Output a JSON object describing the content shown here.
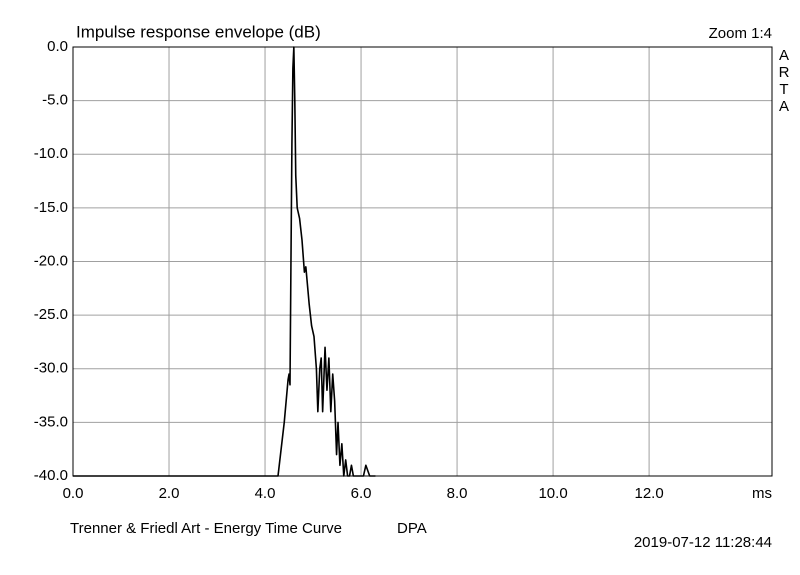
{
  "chart_data": {
    "type": "line",
    "title": "Impulse response envelope (dB)",
    "zoom": "Zoom 1:4",
    "brand": [
      "A",
      "R",
      "T",
      "A"
    ],
    "x_label": "ms",
    "footer": "Trenner & Friedl Art - Energy Time Curve",
    "device": "DPA",
    "timestamp": "2019-07-12  11:28:44",
    "xlim": [
      0,
      14.56
    ],
    "ylim": [
      -40,
      0
    ],
    "xticks": [
      {
        "value": 0,
        "label": "0.0"
      },
      {
        "value": 2,
        "label": "2.0"
      },
      {
        "value": 4,
        "label": "4.0"
      },
      {
        "value": 6,
        "label": "6.0"
      },
      {
        "value": 8,
        "label": "8.0"
      },
      {
        "value": 10,
        "label": "10.0"
      },
      {
        "value": 12,
        "label": "12.0"
      }
    ],
    "yticks": [
      {
        "value": 0,
        "label": "0.0"
      },
      {
        "value": -5,
        "label": "-5.0"
      },
      {
        "value": -10,
        "label": "-10.0"
      },
      {
        "value": -15,
        "label": "-15.0"
      },
      {
        "value": -20,
        "label": "-20.0"
      },
      {
        "value": -25,
        "label": "-25.0"
      },
      {
        "value": -30,
        "label": "-30.0"
      },
      {
        "value": -35,
        "label": "-35.0"
      },
      {
        "value": -40,
        "label": "-40.0"
      }
    ],
    "grid": true,
    "color": "#000000",
    "x": [
      0,
      4.27,
      4.4,
      4.48,
      4.5,
      4.52,
      4.54,
      4.56,
      4.58,
      4.6,
      4.62,
      4.64,
      4.67,
      4.72,
      4.77,
      4.82,
      4.85,
      4.88,
      4.92,
      4.97,
      5.02,
      5.07,
      5.1,
      5.14,
      5.17,
      5.2,
      5.25,
      5.29,
      5.33,
      5.37,
      5.41,
      5.45,
      5.49,
      5.52,
      5.56,
      5.6,
      5.64,
      5.68,
      5.72,
      5.76,
      5.8,
      5.84,
      5.9,
      5.95,
      6.0,
      6.05,
      6.1,
      6.18,
      6.3
    ],
    "values": [
      -40,
      -40,
      -35,
      -31,
      -30.5,
      -31.5,
      -20,
      -9,
      -2,
      0,
      -5,
      -12,
      -15,
      -16,
      -18,
      -21,
      -20.5,
      -22,
      -24,
      -26,
      -27,
      -30,
      -34,
      -30,
      -29,
      -34,
      -28,
      -32,
      -29,
      -34,
      -30.5,
      -33,
      -38,
      -35,
      -39,
      -37,
      -40,
      -38.5,
      -40,
      -40,
      -39,
      -40,
      -40,
      -40,
      -40,
      -40,
      -39,
      -40,
      -40
    ]
  }
}
